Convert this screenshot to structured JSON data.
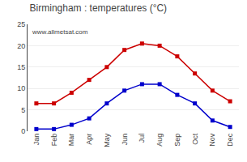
{
  "chart_data": {
    "type": "line",
    "title": "Birmingham : temperatures (°C)",
    "categories": [
      "Jan",
      "Feb",
      "Mar",
      "Apr",
      "May",
      "Jun",
      "Jul",
      "Aug",
      "Sep",
      "Oct",
      "Nov",
      "Dec"
    ],
    "series": [
      {
        "color": "#cc0000",
        "values": [
          6.5,
          6.5,
          9.0,
          12.0,
          15.0,
          19.0,
          20.5,
          20.0,
          17.5,
          13.5,
          9.5,
          7.0
        ]
      },
      {
        "color": "#0000cc",
        "values": [
          0.5,
          0.5,
          1.5,
          3.0,
          6.5,
          9.5,
          11.0,
          11.0,
          8.5,
          6.5,
          2.5,
          1.0
        ]
      }
    ],
    "ylim": [
      0,
      25
    ],
    "yticks": [
      0,
      5,
      10,
      15,
      20,
      25
    ],
    "grid": true,
    "marker": "square",
    "annotations": [
      "www.allmetsat.com"
    ]
  }
}
